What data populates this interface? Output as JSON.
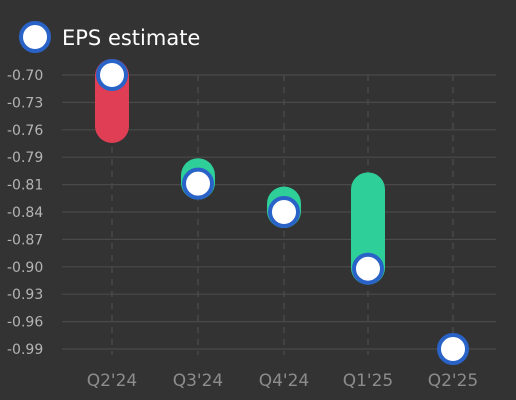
{
  "chart_data": {
    "type": "scatter",
    "categories": [
      "Q2'24",
      "Q3'24",
      "Q4'24",
      "Q1'25",
      "Q2'25"
    ],
    "series": [
      {
        "name": "EPS estimate",
        "values": [
          -0.7,
          -0.815,
          -0.845,
          -0.905,
          -0.99
        ]
      },
      {
        "name": "",
        "values": [
          -0.755,
          -0.805,
          -0.835,
          -0.82,
          null
        ]
      }
    ],
    "yticks": [
      "-0.70",
      "-0.73",
      "-0.76",
      "-0.79",
      "-0.81",
      "-0.84",
      "-0.87",
      "-0.90",
      "-0.93",
      "-0.96",
      "-0.99"
    ],
    "ylim": [
      -0.99,
      -0.7
    ],
    "legend": {
      "label": "EPS estimate",
      "position": "top-left"
    },
    "grid": {
      "horizontal": true,
      "vertical_dashed": true
    },
    "colors": {
      "beat": "#2ecf98",
      "miss": "#e03e55",
      "marker_fill": "#ffffff",
      "marker_stroke": "#2a63c8",
      "grid": "#4a4a4a",
      "background": "#333333"
    }
  }
}
